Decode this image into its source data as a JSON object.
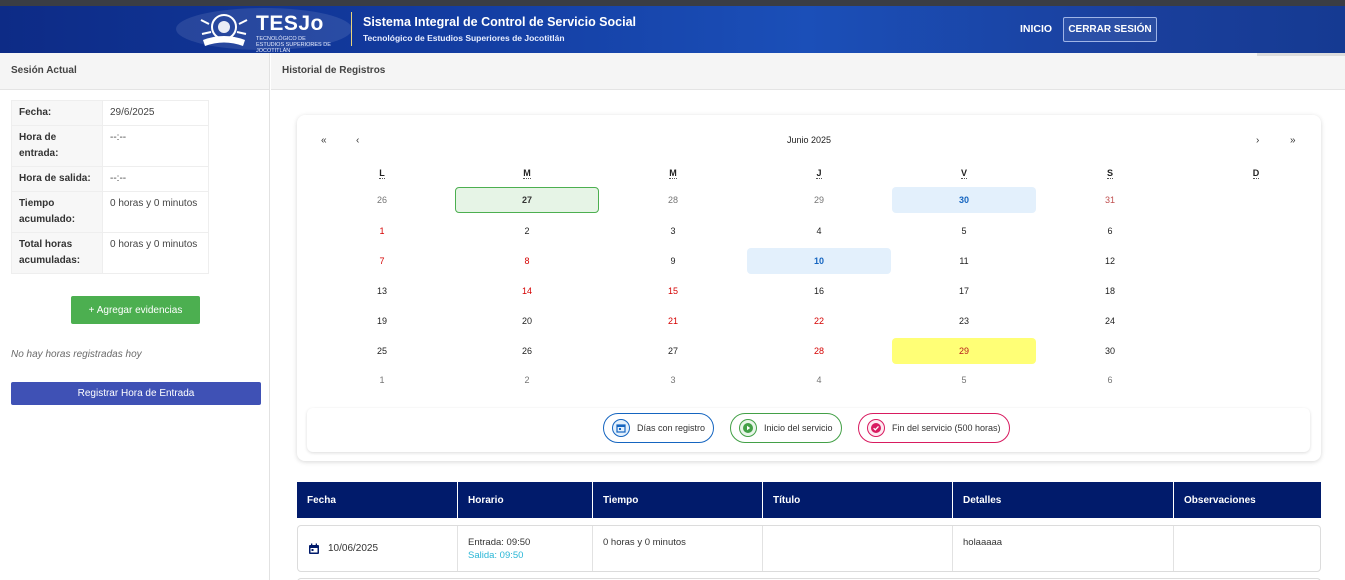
{
  "header": {
    "logo_text": "TESJo",
    "logo_subtitle": "TECNOLÓGICO DE ESTUDIOS SUPERIORES DE JOCOTITLÁN",
    "title": "Sistema Integral de Control de Servicio Social",
    "subtitle": "Tecnológico de Estudios Superiores de Jocotitlán",
    "nav_home": "INICIO",
    "logout": "CERRAR SESIÓN"
  },
  "session": {
    "heading": "Sesión Actual",
    "rows": [
      {
        "label": "Fecha:",
        "value": "29/6/2025"
      },
      {
        "label": "Hora de entrada:",
        "value": "--:--"
      },
      {
        "label": "Hora de salida:",
        "value": "--:--"
      },
      {
        "label": "Tiempo acumulado:",
        "value": "0 horas y 0 minutos"
      },
      {
        "label": "Total horas acumuladas:",
        "value": "0 horas y 0 minutos"
      }
    ],
    "add_evidence": "+ Agregar evidencias",
    "no_hours": "No hay horas registradas hoy",
    "register_entry": "Registrar Hora de Entrada"
  },
  "history": {
    "heading": "Historial de Registros",
    "calendar": {
      "month_label": "Junio 2025",
      "nav": {
        "prev_year": "«",
        "prev_month": "‹",
        "next_month": "›",
        "next_year": "»"
      },
      "weekdays": [
        "L",
        "M",
        "M",
        "J",
        "V",
        "S",
        "D"
      ],
      "weeks": [
        [
          "26",
          "27",
          "28",
          "29",
          "30",
          "31",
          ""
        ],
        [
          "1",
          "2",
          "3",
          "4",
          "5",
          "6",
          ""
        ],
        [
          "7",
          "8",
          "9",
          "10",
          "11",
          "12",
          ""
        ],
        [
          "13",
          "14",
          "15",
          "16",
          "17",
          "18",
          ""
        ],
        [
          "19",
          "20",
          "21",
          "22",
          "23",
          "24",
          ""
        ],
        [
          "25",
          "26",
          "27",
          "28",
          "29",
          "30",
          ""
        ],
        [
          "1",
          "2",
          "3",
          "4",
          "5",
          "6",
          ""
        ]
      ],
      "highlight_colors": {
        "registro": "#e3f0fc",
        "inicio": "#e6f4e6",
        "hoy": "#ffff76",
        "festivo_text": "#d50000"
      }
    },
    "legend": {
      "dias_registro": "Días con registro",
      "inicio_servicio": "Inicio del servicio",
      "fin_servicio": "Fin del servicio (500 horas)"
    },
    "table": {
      "columns": [
        "Fecha",
        "Horario",
        "Tiempo",
        "Título",
        "Detalles",
        "Observaciones"
      ],
      "rows": [
        {
          "fecha": "10/06/2025",
          "entrada": "Entrada: 09:50",
          "salida": "Salida: 09:50",
          "tiempo": "0 horas y 0 minutos",
          "titulo": "",
          "detalles": "holaaaaa",
          "observaciones": ""
        }
      ]
    }
  }
}
